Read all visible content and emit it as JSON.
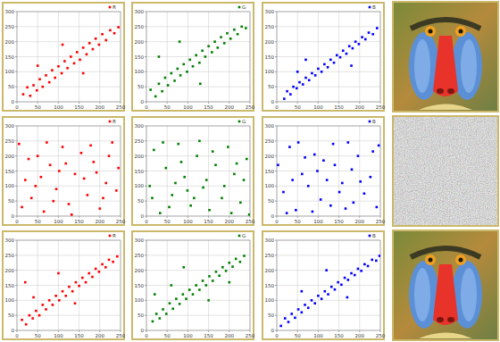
{
  "chart_data": [
    {
      "type": "scatter",
      "series": [
        {
          "name": "R",
          "color": "#ff0000",
          "marker": "square",
          "x": [
            15,
            25,
            32,
            40,
            48,
            55,
            62,
            70,
            78,
            85,
            92,
            100,
            108,
            115,
            122,
            130,
            138,
            145,
            152,
            160,
            168,
            175,
            183,
            190,
            198,
            206,
            215,
            225,
            235,
            245,
            50,
            160,
            110
          ],
          "values": [
            25,
            48,
            20,
            55,
            38,
            75,
            50,
            88,
            65,
            105,
            80,
            118,
            95,
            135,
            112,
            150,
            128,
            165,
            140,
            180,
            158,
            195,
            175,
            210,
            190,
            225,
            205,
            238,
            228,
            248,
            120,
            95,
            190
          ]
        }
      ],
      "xlim": [
        0,
        250
      ],
      "xticks": [
        0,
        50,
        100,
        150,
        200,
        250
      ],
      "ylim": [
        0,
        300
      ],
      "yticks": [
        0,
        50,
        100,
        150,
        200,
        250,
        300
      ],
      "grid": true,
      "legend": "top-right"
    },
    {
      "type": "scatter",
      "series": [
        {
          "name": "G",
          "color": "#008000",
          "marker": "square",
          "x": [
            10,
            22,
            30,
            38,
            45,
            52,
            60,
            68,
            75,
            82,
            90,
            98,
            105,
            112,
            120,
            128,
            135,
            142,
            150,
            158,
            165,
            172,
            180,
            188,
            195,
            203,
            212,
            220,
            230,
            240,
            30,
            130,
            80
          ],
          "values": [
            40,
            18,
            60,
            35,
            80,
            55,
            95,
            70,
            110,
            88,
            125,
            100,
            140,
            118,
            155,
            130,
            170,
            150,
            185,
            165,
            200,
            180,
            215,
            195,
            228,
            210,
            240,
            225,
            250,
            245,
            150,
            60,
            200
          ]
        }
      ],
      "xlim": [
        0,
        250
      ],
      "xticks": [
        0,
        50,
        100,
        150,
        200,
        250
      ],
      "ylim": [
        0,
        300
      ],
      "yticks": [
        0,
        50,
        100,
        150,
        200,
        250,
        300
      ],
      "grid": true,
      "legend": "top-right"
    },
    {
      "type": "scatter",
      "series": [
        {
          "name": "B",
          "color": "#0000ff",
          "marker": "square",
          "x": [
            18,
            25,
            33,
            40,
            48,
            55,
            63,
            70,
            78,
            85,
            93,
            100,
            108,
            115,
            123,
            130,
            138,
            145,
            153,
            160,
            168,
            175,
            183,
            190,
            198,
            206,
            214,
            222,
            232,
            242,
            70,
            180,
            50
          ],
          "values": [
            10,
            35,
            25,
            50,
            45,
            65,
            58,
            80,
            72,
            95,
            88,
            110,
            100,
            125,
            115,
            140,
            130,
            155,
            148,
            170,
            160,
            185,
            178,
            200,
            192,
            215,
            208,
            230,
            225,
            245,
            140,
            120,
            100
          ]
        }
      ],
      "xlim": [
        0,
        250
      ],
      "xticks": [
        0,
        50,
        100,
        150,
        200,
        250
      ],
      "ylim": [
        0,
        300
      ],
      "yticks": [
        0,
        50,
        100,
        150,
        200,
        250,
        300
      ],
      "grid": true,
      "legend": "top-right"
    },
    {
      "type": "scatter",
      "series": [
        {
          "name": "R",
          "color": "#ff0000",
          "marker": "square",
          "x": [
            5,
            20,
            35,
            50,
            65,
            80,
            95,
            110,
            125,
            140,
            155,
            170,
            185,
            200,
            215,
            230,
            245,
            12,
            28,
            45,
            72,
            88,
            118,
            132,
            162,
            178,
            208,
            222,
            240,
            102,
            58,
            192
          ],
          "values": [
            240,
            120,
            60,
            200,
            15,
            170,
            90,
            230,
            40,
            140,
            210,
            70,
            180,
            25,
            110,
            245,
            160,
            30,
            190,
            100,
            245,
            50,
            175,
            5,
            125,
            235,
            60,
            200,
            85,
            150,
            130,
            145
          ]
        }
      ],
      "xlim": [
        0,
        250
      ],
      "xticks": [
        0,
        50,
        100,
        150,
        200,
        250
      ],
      "ylim": [
        0,
        300
      ],
      "yticks": [
        0,
        50,
        100,
        150,
        200,
        250,
        300
      ],
      "grid": true,
      "legend": "top-right"
    },
    {
      "type": "scatter",
      "series": [
        {
          "name": "G",
          "color": "#008000",
          "marker": "square",
          "x": [
            8,
            18,
            33,
            47,
            62,
            77,
            92,
            107,
            122,
            137,
            152,
            167,
            182,
            197,
            212,
            227,
            242,
            14,
            40,
            55,
            84,
            99,
            128,
            145,
            160,
            188,
            205,
            218,
            235,
            70,
            115,
            248
          ],
          "values": [
            100,
            220,
            10,
            160,
            70,
            240,
            130,
            35,
            200,
            95,
            20,
            170,
            60,
            230,
            140,
            45,
            190,
            60,
            245,
            30,
            180,
            85,
            250,
            120,
            215,
            100,
            10,
            175,
            120,
            110,
            60,
            5
          ]
        }
      ],
      "xlim": [
        0,
        250
      ],
      "xticks": [
        0,
        50,
        100,
        150,
        200,
        250
      ],
      "ylim": [
        0,
        300
      ],
      "yticks": [
        0,
        50,
        100,
        150,
        200,
        250,
        300
      ],
      "grid": true,
      "legend": "top-right"
    },
    {
      "type": "scatter",
      "series": [
        {
          "name": "B",
          "color": "#0000ff",
          "marker": "square",
          "x": [
            3,
            16,
            31,
            46,
            61,
            76,
            91,
            106,
            121,
            136,
            151,
            166,
            181,
            196,
            211,
            226,
            241,
            24,
            38,
            52,
            86,
            113,
            130,
            158,
            172,
            202,
            232,
            246,
            68,
            98,
            185,
            140
          ],
          "values": [
            170,
            80,
            230,
            20,
            140,
            100,
            205,
            55,
            120,
            240,
            80,
            25,
            155,
            200,
            75,
            130,
            30,
            10,
            120,
            245,
            15,
            185,
            35,
            110,
            245,
            115,
            215,
            235,
            195,
            150,
            45,
            170
          ]
        }
      ],
      "xlim": [
        0,
        250
      ],
      "xticks": [
        0,
        50,
        100,
        150,
        200,
        250
      ],
      "ylim": [
        0,
        300
      ],
      "yticks": [
        0,
        50,
        100,
        150,
        200,
        250,
        300
      ],
      "grid": true,
      "legend": "top-right"
    },
    {
      "type": "scatter",
      "series": [
        {
          "name": "R",
          "color": "#ff0000",
          "marker": "square",
          "x": [
            12,
            22,
            30,
            38,
            46,
            54,
            62,
            70,
            78,
            86,
            94,
            102,
            110,
            118,
            126,
            134,
            142,
            150,
            158,
            166,
            174,
            182,
            190,
            198,
            206,
            214,
            222,
            232,
            242,
            40,
            140,
            100,
            20
          ],
          "values": [
            35,
            20,
            50,
            40,
            65,
            50,
            85,
            70,
            100,
            85,
            115,
            100,
            130,
            115,
            145,
            130,
            160,
            148,
            175,
            160,
            190,
            178,
            205,
            195,
            220,
            210,
            235,
            228,
            246,
            110,
            90,
            190,
            160
          ]
        }
      ],
      "xlim": [
        0,
        250
      ],
      "xticks": [
        0,
        50,
        100,
        150,
        200,
        250
      ],
      "ylim": [
        0,
        300
      ],
      "yticks": [
        0,
        50,
        100,
        150,
        200,
        250,
        300
      ],
      "grid": true,
      "legend": "top-right"
    },
    {
      "type": "scatter",
      "series": [
        {
          "name": "G",
          "color": "#008000",
          "marker": "square",
          "x": [
            15,
            24,
            32,
            40,
            48,
            56,
            64,
            72,
            80,
            88,
            96,
            104,
            112,
            120,
            128,
            136,
            144,
            152,
            160,
            168,
            176,
            184,
            192,
            200,
            208,
            216,
            226,
            236,
            60,
            150,
            200,
            20,
            90
          ],
          "values": [
            30,
            55,
            40,
            70,
            55,
            90,
            72,
            105,
            88,
            120,
            105,
            135,
            120,
            150,
            135,
            165,
            150,
            180,
            165,
            195,
            182,
            210,
            198,
            225,
            212,
            238,
            228,
            248,
            150,
            100,
            160,
            120,
            210
          ]
        }
      ],
      "xlim": [
        0,
        250
      ],
      "xticks": [
        0,
        50,
        100,
        150,
        200,
        250
      ],
      "ylim": [
        0,
        300
      ],
      "yticks": [
        0,
        50,
        100,
        150,
        200,
        250,
        300
      ],
      "grid": true,
      "legend": "top-right"
    },
    {
      "type": "scatter",
      "series": [
        {
          "name": "B",
          "color": "#0000ff",
          "marker": "square",
          "x": [
            10,
            20,
            28,
            36,
            44,
            52,
            60,
            68,
            76,
            84,
            92,
            100,
            108,
            116,
            124,
            132,
            140,
            148,
            156,
            164,
            172,
            180,
            188,
            196,
            204,
            212,
            220,
            230,
            240,
            248,
            60,
            170,
            120
          ],
          "values": [
            15,
            40,
            28,
            55,
            42,
            70,
            60,
            85,
            75,
            100,
            90,
            115,
            105,
            130,
            120,
            145,
            136,
            160,
            152,
            175,
            168,
            190,
            184,
            205,
            198,
            220,
            214,
            235,
            232,
            248,
            130,
            110,
            200
          ]
        }
      ],
      "xlim": [
        0,
        250
      ],
      "xticks": [
        0,
        50,
        100,
        150,
        200,
        250
      ],
      "ylim": [
        0,
        300
      ],
      "yticks": [
        0,
        50,
        100,
        150,
        200,
        250,
        300
      ],
      "grid": true,
      "legend": "top-right"
    }
  ]
}
